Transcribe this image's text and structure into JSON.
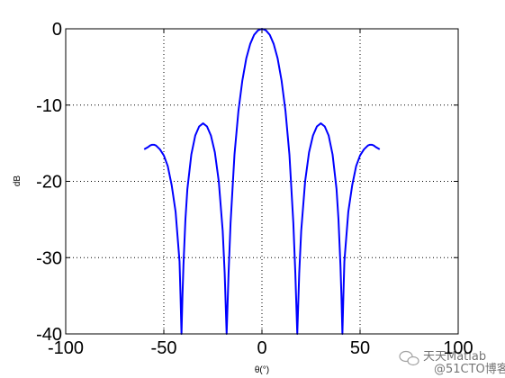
{
  "chart_data": {
    "type": "line",
    "title": "",
    "xlabel": "θ(°)",
    "ylabel": "dB",
    "xlim": [
      -100,
      100
    ],
    "ylim": [
      -40,
      0
    ],
    "grid": true,
    "grid_style": "dotted",
    "x_ticks": [
      -100,
      -50,
      0,
      50,
      100
    ],
    "x_tick_labels": [
      "-100",
      "-50",
      "0",
      "50",
      "100"
    ],
    "y_ticks": [
      0,
      -10,
      -20,
      -30,
      -40
    ],
    "y_tick_labels": [
      "0",
      "-10",
      "-20",
      "-30",
      "-40"
    ],
    "series": [
      {
        "color": "#0000ff",
        "x": [
          -60,
          -58,
          -57,
          -56,
          -55,
          -54,
          -52,
          -50,
          -48,
          -46,
          -44,
          -42,
          -41.5,
          -41,
          -40.5,
          -40,
          -39,
          -38,
          -36,
          -34,
          -32,
          -30,
          -28,
          -26,
          -24,
          -22,
          -20,
          -19,
          -18.5,
          -18,
          -17.5,
          -17,
          -16,
          -14,
          -12,
          -10,
          -8,
          -6,
          -4,
          -2,
          0,
          2,
          4,
          6,
          8,
          10,
          12,
          14,
          16,
          17,
          17.5,
          18,
          18.5,
          19,
          20,
          22,
          24,
          26,
          28,
          30,
          32,
          34,
          36,
          38,
          39,
          40,
          40.5,
          41,
          41.5,
          42,
          44,
          46,
          48,
          50,
          52,
          54,
          55,
          56,
          57,
          58,
          60
        ],
        "y": [
          -15.8,
          -15.5,
          -15.3,
          -15.2,
          -15.2,
          -15.3,
          -15.8,
          -16.6,
          -18.0,
          -20.5,
          -24.0,
          -30.5,
          -35,
          -40,
          -35,
          -31,
          -25,
          -21,
          -16.5,
          -14.0,
          -12.8,
          -12.4,
          -12.8,
          -14.0,
          -16.2,
          -20.0,
          -26.5,
          -32,
          -36,
          -40,
          -36,
          -32,
          -25.5,
          -16.5,
          -10.8,
          -6.8,
          -3.9,
          -2.0,
          -0.8,
          -0.2,
          0,
          -0.2,
          -0.8,
          -2.0,
          -3.9,
          -6.8,
          -10.8,
          -16.5,
          -25.5,
          -32,
          -36,
          -40,
          -36,
          -32,
          -26.5,
          -20.0,
          -16.2,
          -14.0,
          -12.8,
          -12.4,
          -12.8,
          -14.0,
          -16.5,
          -21,
          -25,
          -31,
          -35,
          -40,
          -35,
          -30.5,
          -24.0,
          -20.5,
          -18.0,
          -16.6,
          -15.8,
          -15.3,
          -15.2,
          -15.2,
          -15.3,
          -15.5,
          -15.8
        ]
      }
    ]
  },
  "watermark": {
    "text": "天天Matlab",
    "subtext": "@51CTO博客",
    "icon": "wechat-icon"
  }
}
